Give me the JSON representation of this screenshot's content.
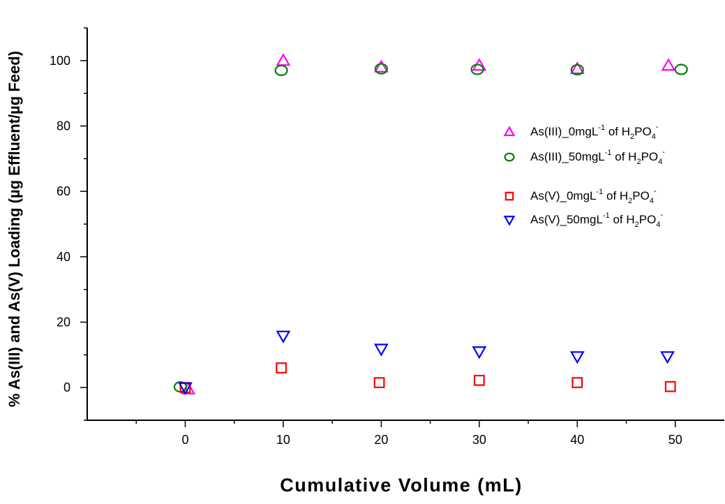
{
  "chart_data": {
    "type": "scatter",
    "xlabel": "Cumulative Volume (mL)",
    "ylabel": "% As(III) and As(V) Loading (µg Effluent/µg Feed)",
    "xlim": [
      -10,
      55
    ],
    "ylim": [
      -10,
      110
    ],
    "xticks": [
      0,
      10,
      20,
      30,
      40,
      50
    ],
    "yticks": [
      0,
      20,
      40,
      60,
      80,
      100
    ],
    "xminor_step": 5,
    "yminor_step": 10,
    "legend_position": "right",
    "series": [
      {
        "name": "As(III)_0mgL-1 of H2PO4-",
        "legend": {
          "prefix": "As(III)_0mgL",
          "sup1": "-1",
          "mid": " of H",
          "sub1": "2",
          "mid2": "PO",
          "sub2": "4",
          "sup2": "-"
        },
        "marker": "triangle-up",
        "color": "#ff00ff",
        "points": [
          [
            0.3,
            -0.5
          ],
          [
            10,
            100
          ],
          [
            20,
            98
          ],
          [
            30,
            98.5
          ],
          [
            40,
            97.5
          ],
          [
            49.3,
            98.5
          ]
        ]
      },
      {
        "name": "As(III)_50mgL-1 of H2PO4-",
        "legend": {
          "prefix": "As(III)_50mgL",
          "sup1": "-1",
          "mid": " of H",
          "sub1": "2",
          "mid2": "PO",
          "sub2": "4",
          "sup2": "-"
        },
        "marker": "circle",
        "color": "#008000",
        "points": [
          [
            -0.5,
            0.2
          ],
          [
            9.8,
            97
          ],
          [
            20,
            97.5
          ],
          [
            29.8,
            97.3
          ],
          [
            40,
            97.2
          ],
          [
            50.6,
            97.3
          ]
        ]
      },
      {
        "name": "As(V)_0mgL-1 of H2PO4-",
        "legend": {
          "prefix": "As(V)_0mgL",
          "sup1": "-1",
          "mid": " of H",
          "sub1": "2",
          "mid2": "PO",
          "sub2": "4",
          "sup2": "-"
        },
        "marker": "square",
        "color": "#ff0000",
        "points": [
          [
            0,
            0
          ],
          [
            9.8,
            6
          ],
          [
            19.8,
            1.5
          ],
          [
            30,
            2.2
          ],
          [
            40,
            1.5
          ],
          [
            49.5,
            0.3
          ]
        ]
      },
      {
        "name": "As(V)_50mgL-1 of H2PO4-",
        "legend": {
          "prefix": "As(V)_50mgL",
          "sup1": "-1",
          "mid": " of H",
          "sub1": "2",
          "mid2": "PO",
          "sub2": "4",
          "sup2": "-"
        },
        "marker": "triangle-down",
        "color": "#0000ff",
        "points": [
          [
            0,
            0
          ],
          [
            10,
            15.8
          ],
          [
            20,
            11.8
          ],
          [
            30,
            11
          ],
          [
            40,
            9.5
          ],
          [
            49.2,
            9.5
          ]
        ]
      }
    ]
  }
}
